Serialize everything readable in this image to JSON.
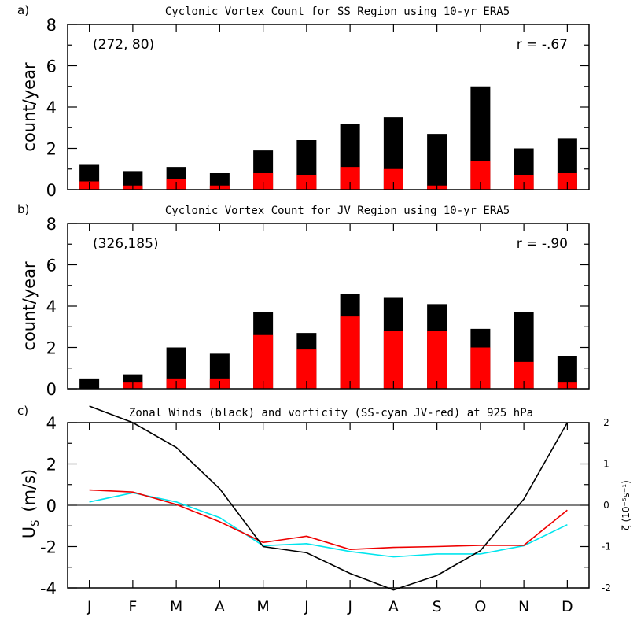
{
  "chart_data": [
    {
      "type": "bar",
      "panel_label": "a)",
      "title": "Cyclonic Vortex Count for SS Region using 10-yr ERA5",
      "ylabel": "count/year",
      "xlabel": "",
      "ylim": [
        0,
        8
      ],
      "yticks": [
        "0",
        "2",
        "4",
        "6",
        "8"
      ],
      "categories": [
        "J",
        "F",
        "M",
        "A",
        "M",
        "J",
        "J",
        "A",
        "S",
        "O",
        "N",
        "D"
      ],
      "series": [
        {
          "name": "total",
          "color": "#000000",
          "values": [
            1.2,
            0.9,
            1.1,
            0.8,
            1.9,
            2.4,
            3.2,
            3.5,
            2.7,
            5.0,
            2.0,
            2.5
          ]
        },
        {
          "name": "subset",
          "color": "#ff0000",
          "values": [
            0.4,
            0.2,
            0.5,
            0.2,
            0.8,
            0.7,
            1.1,
            1.0,
            0.2,
            1.4,
            0.7,
            0.8
          ]
        }
      ],
      "annotation_left": "(272, 80)",
      "annotation_right": "r = -.67"
    },
    {
      "type": "bar",
      "panel_label": "b)",
      "title": "Cyclonic Vortex Count for JV Region using 10-yr ERA5",
      "ylabel": "count/year",
      "xlabel": "",
      "ylim": [
        0,
        8
      ],
      "yticks": [
        "0",
        "2",
        "4",
        "6",
        "8"
      ],
      "categories": [
        "J",
        "F",
        "M",
        "A",
        "M",
        "J",
        "J",
        "A",
        "S",
        "O",
        "N",
        "D"
      ],
      "series": [
        {
          "name": "total",
          "color": "#000000",
          "values": [
            0.5,
            0.7,
            2.0,
            1.7,
            3.7,
            2.7,
            4.6,
            4.4,
            4.1,
            2.9,
            3.7,
            1.6
          ]
        },
        {
          "name": "subset",
          "color": "#ff0000",
          "values": [
            0.0,
            0.3,
            0.5,
            0.5,
            2.6,
            1.9,
            3.5,
            2.8,
            2.8,
            2.0,
            1.3,
            0.3
          ]
        }
      ],
      "annotation_left": "(326,185)",
      "annotation_right": "r = -.90"
    },
    {
      "type": "line",
      "panel_label": "c)",
      "title": "Zonal Winds (black) and vorticity (SS-cyan JV-red) at 925 hPa",
      "ylabel": "U",
      "ylabel_sub": "S",
      "ylabel_units": "(m/s)",
      "ylim": [
        -4,
        4
      ],
      "yticks": [
        "-4",
        "-2",
        "0",
        "2",
        "4"
      ],
      "y2label": "ζ  (10⁻⁵s⁻¹)",
      "y2lim": [
        -2,
        2
      ],
      "y2ticks": [
        "-2",
        "-1",
        "0",
        "1",
        "2"
      ],
      "x": [
        "J",
        "F",
        "M",
        "A",
        "M",
        "J",
        "J",
        "A",
        "S",
        "O",
        "N",
        "D"
      ],
      "series": [
        {
          "name": "Zonal Winds",
          "axis": "left",
          "color": "#000000",
          "values": [
            4.8,
            4.0,
            2.8,
            0.8,
            -2.0,
            -2.3,
            -3.3,
            -4.1,
            -3.4,
            -2.2,
            0.3,
            4.0
          ]
        },
        {
          "name": "SS vorticity",
          "axis": "right",
          "color": "#00e5ee",
          "values": [
            0.08,
            0.3,
            0.08,
            -0.3,
            -0.98,
            -0.93,
            -1.12,
            -1.25,
            -1.18,
            -1.18,
            -0.98,
            -0.47
          ]
        },
        {
          "name": "JV vorticity",
          "axis": "right",
          "color": "#ee0000",
          "values": [
            0.37,
            0.32,
            0.02,
            -0.4,
            -0.9,
            -0.75,
            -1.07,
            -1.02,
            -1.0,
            -0.97,
            -0.97,
            -0.12
          ]
        }
      ]
    }
  ]
}
